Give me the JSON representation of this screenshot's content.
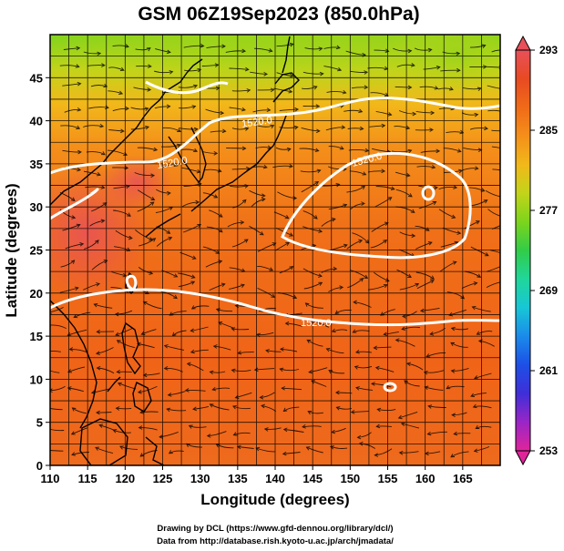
{
  "title": "GSM 06Z19Sep2023 (850.0hPa)",
  "xlabel": "Longitude (degrees)",
  "ylabel": "Latitude  (degrees)",
  "x_ticks": [
    "110",
    "115",
    "120",
    "125",
    "130",
    "135",
    "140",
    "145",
    "150",
    "155",
    "160",
    "165"
  ],
  "y_ticks": [
    "0",
    "5",
    "10",
    "15",
    "20",
    "25",
    "30",
    "35",
    "40",
    "45"
  ],
  "colorbar": {
    "ticks": [
      "293",
      "285",
      "277",
      "269",
      "261",
      "253"
    ],
    "min": 253,
    "max": 293,
    "colors": [
      "#e0259a",
      "#9b25c6",
      "#3f2fd8",
      "#1d4fe6",
      "#1a8bea",
      "#18c6d6",
      "#20d69a",
      "#31cc48",
      "#7cd41c",
      "#c2d41a",
      "#f2b81a",
      "#f48f1a",
      "#f06a18",
      "#e84a22",
      "#e8505a"
    ]
  },
  "contour_labels": [
    "1520.0",
    "1520.0",
    "1520.0",
    "1520.0"
  ],
  "credits": {
    "line1": "Drawing by DCL (https://www.gfd-dennou.org/library/dcl/)",
    "line2": "Data from http://database.rish.kyoto-u.ac.jp/arch/jmadata/"
  },
  "map": {
    "lon_range": [
      110,
      170
    ],
    "lat_range": [
      0,
      50
    ]
  }
}
